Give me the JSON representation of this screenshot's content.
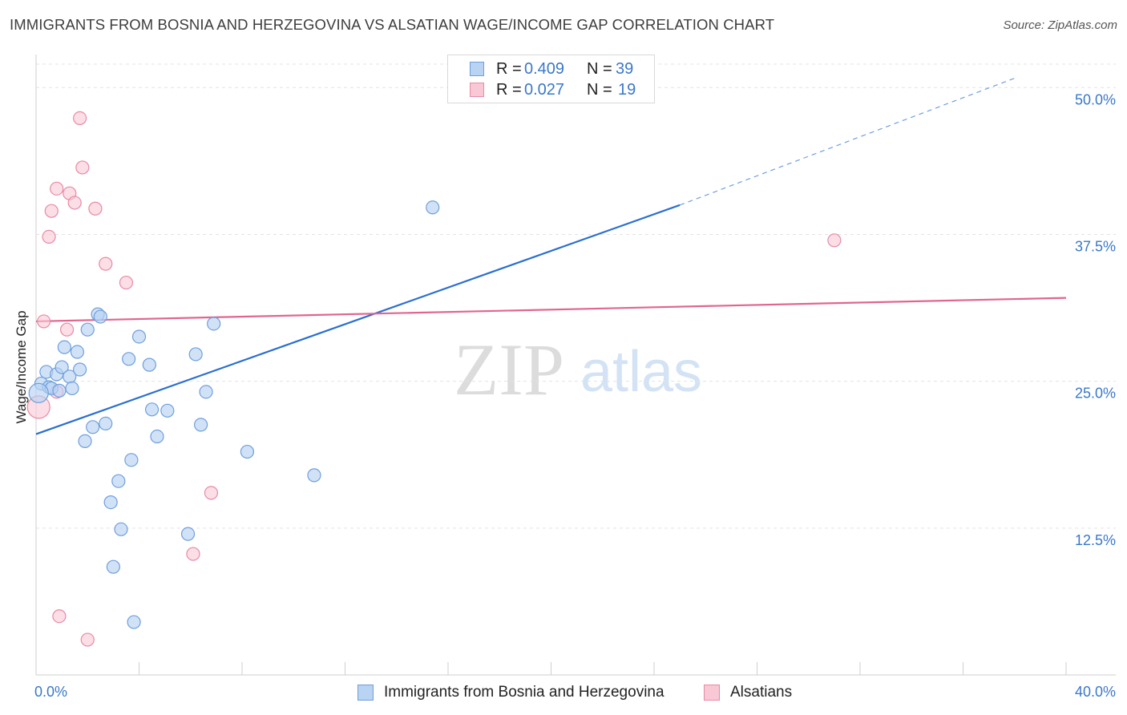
{
  "header": {
    "title": "IMMIGRANTS FROM BOSNIA AND HERZEGOVINA VS ALSATIAN WAGE/INCOME GAP CORRELATION CHART",
    "source": "Source: ZipAtlas.com"
  },
  "watermark": {
    "zip": "ZIP",
    "atlas": "atlas"
  },
  "colors": {
    "blue_fill": "#b9d3f3",
    "blue_stroke": "#6e9fdc",
    "blue_line": "#2a6fcf",
    "pink_fill": "#f8c8d6",
    "pink_stroke": "#e88aa5",
    "pink_line": "#e0668f",
    "value_text": "#3a78c9",
    "grid": "#e3e3e3"
  },
  "stats": [
    {
      "r_label": "R =",
      "r_value": "0.409",
      "n_label": "N =",
      "n_value": "39"
    },
    {
      "r_label": "R =",
      "r_value": "0.027",
      "n_label": "N =",
      "n_value": "19"
    }
  ],
  "chart_data": {
    "type": "scatter",
    "title": "IMMIGRANTS FROM BOSNIA AND HERZEGOVINA VS ALSATIAN WAGE/INCOME GAP CORRELATION CHART",
    "xlabel": "",
    "ylabel": "Wage/Income Gap",
    "xlim": [
      0,
      40
    ],
    "ylim": [
      0,
      52
    ],
    "x_tick_labels": [
      {
        "value": 0,
        "label": "0.0%"
      },
      {
        "value": 40,
        "label": "40.0%"
      }
    ],
    "y_tick_labels": [
      {
        "value": 12.5,
        "label": "12.5%"
      },
      {
        "value": 25,
        "label": "25.0%"
      },
      {
        "value": 37.5,
        "label": "37.5%"
      },
      {
        "value": 50,
        "label": "50.0%"
      }
    ],
    "legend_position": "top-center",
    "series": [
      {
        "name": "Immigrants from Bosnia and Herzegovina",
        "color": "blue",
        "points": [
          [
            0.2,
            24.8
          ],
          [
            0.4,
            25.8
          ],
          [
            0.5,
            24.5
          ],
          [
            0.6,
            24.4
          ],
          [
            0.8,
            25.6
          ],
          [
            0.9,
            24.2
          ],
          [
            1.0,
            26.2
          ],
          [
            1.1,
            27.9
          ],
          [
            1.3,
            25.4
          ],
          [
            1.4,
            24.4
          ],
          [
            1.6,
            27.5
          ],
          [
            1.7,
            26.0
          ],
          [
            1.9,
            19.9
          ],
          [
            2.0,
            29.4
          ],
          [
            2.2,
            21.1
          ],
          [
            2.4,
            30.7
          ],
          [
            2.5,
            30.5
          ],
          [
            2.7,
            21.4
          ],
          [
            2.9,
            14.7
          ],
          [
            3.0,
            9.2
          ],
          [
            3.2,
            16.5
          ],
          [
            3.3,
            12.4
          ],
          [
            3.6,
            26.9
          ],
          [
            3.7,
            18.3
          ],
          [
            3.8,
            4.5
          ],
          [
            4.0,
            28.8
          ],
          [
            4.4,
            26.4
          ],
          [
            4.5,
            22.6
          ],
          [
            4.7,
            20.3
          ],
          [
            5.1,
            22.5
          ],
          [
            5.9,
            12.0
          ],
          [
            6.2,
            27.3
          ],
          [
            6.4,
            21.3
          ],
          [
            6.6,
            24.1
          ],
          [
            6.9,
            29.9
          ],
          [
            8.2,
            19.0
          ],
          [
            10.8,
            17.0
          ],
          [
            15.4,
            39.8
          ],
          [
            0.1,
            24.0
          ]
        ],
        "trend": {
          "x": [
            0,
            25
          ],
          "y": [
            20.5,
            40.0
          ],
          "dashed_to": {
            "x": 38,
            "y": 50.8
          }
        }
      },
      {
        "name": "Alsatians",
        "color": "pink",
        "points": [
          [
            0.1,
            22.8
          ],
          [
            0.3,
            30.1
          ],
          [
            0.5,
            37.3
          ],
          [
            0.6,
            39.5
          ],
          [
            0.8,
            41.4
          ],
          [
            0.8,
            24.1
          ],
          [
            0.9,
            5.0
          ],
          [
            1.2,
            29.4
          ],
          [
            1.3,
            41.0
          ],
          [
            1.5,
            40.2
          ],
          [
            1.7,
            47.4
          ],
          [
            1.8,
            43.2
          ],
          [
            2.0,
            3.0
          ],
          [
            2.3,
            39.7
          ],
          [
            2.7,
            35.0
          ],
          [
            3.5,
            33.4
          ],
          [
            6.1,
            10.3
          ],
          [
            6.8,
            15.5
          ],
          [
            31.0,
            37.0
          ]
        ],
        "trend": {
          "x": [
            0,
            40
          ],
          "y": [
            30.1,
            32.1
          ]
        }
      }
    ]
  }
}
